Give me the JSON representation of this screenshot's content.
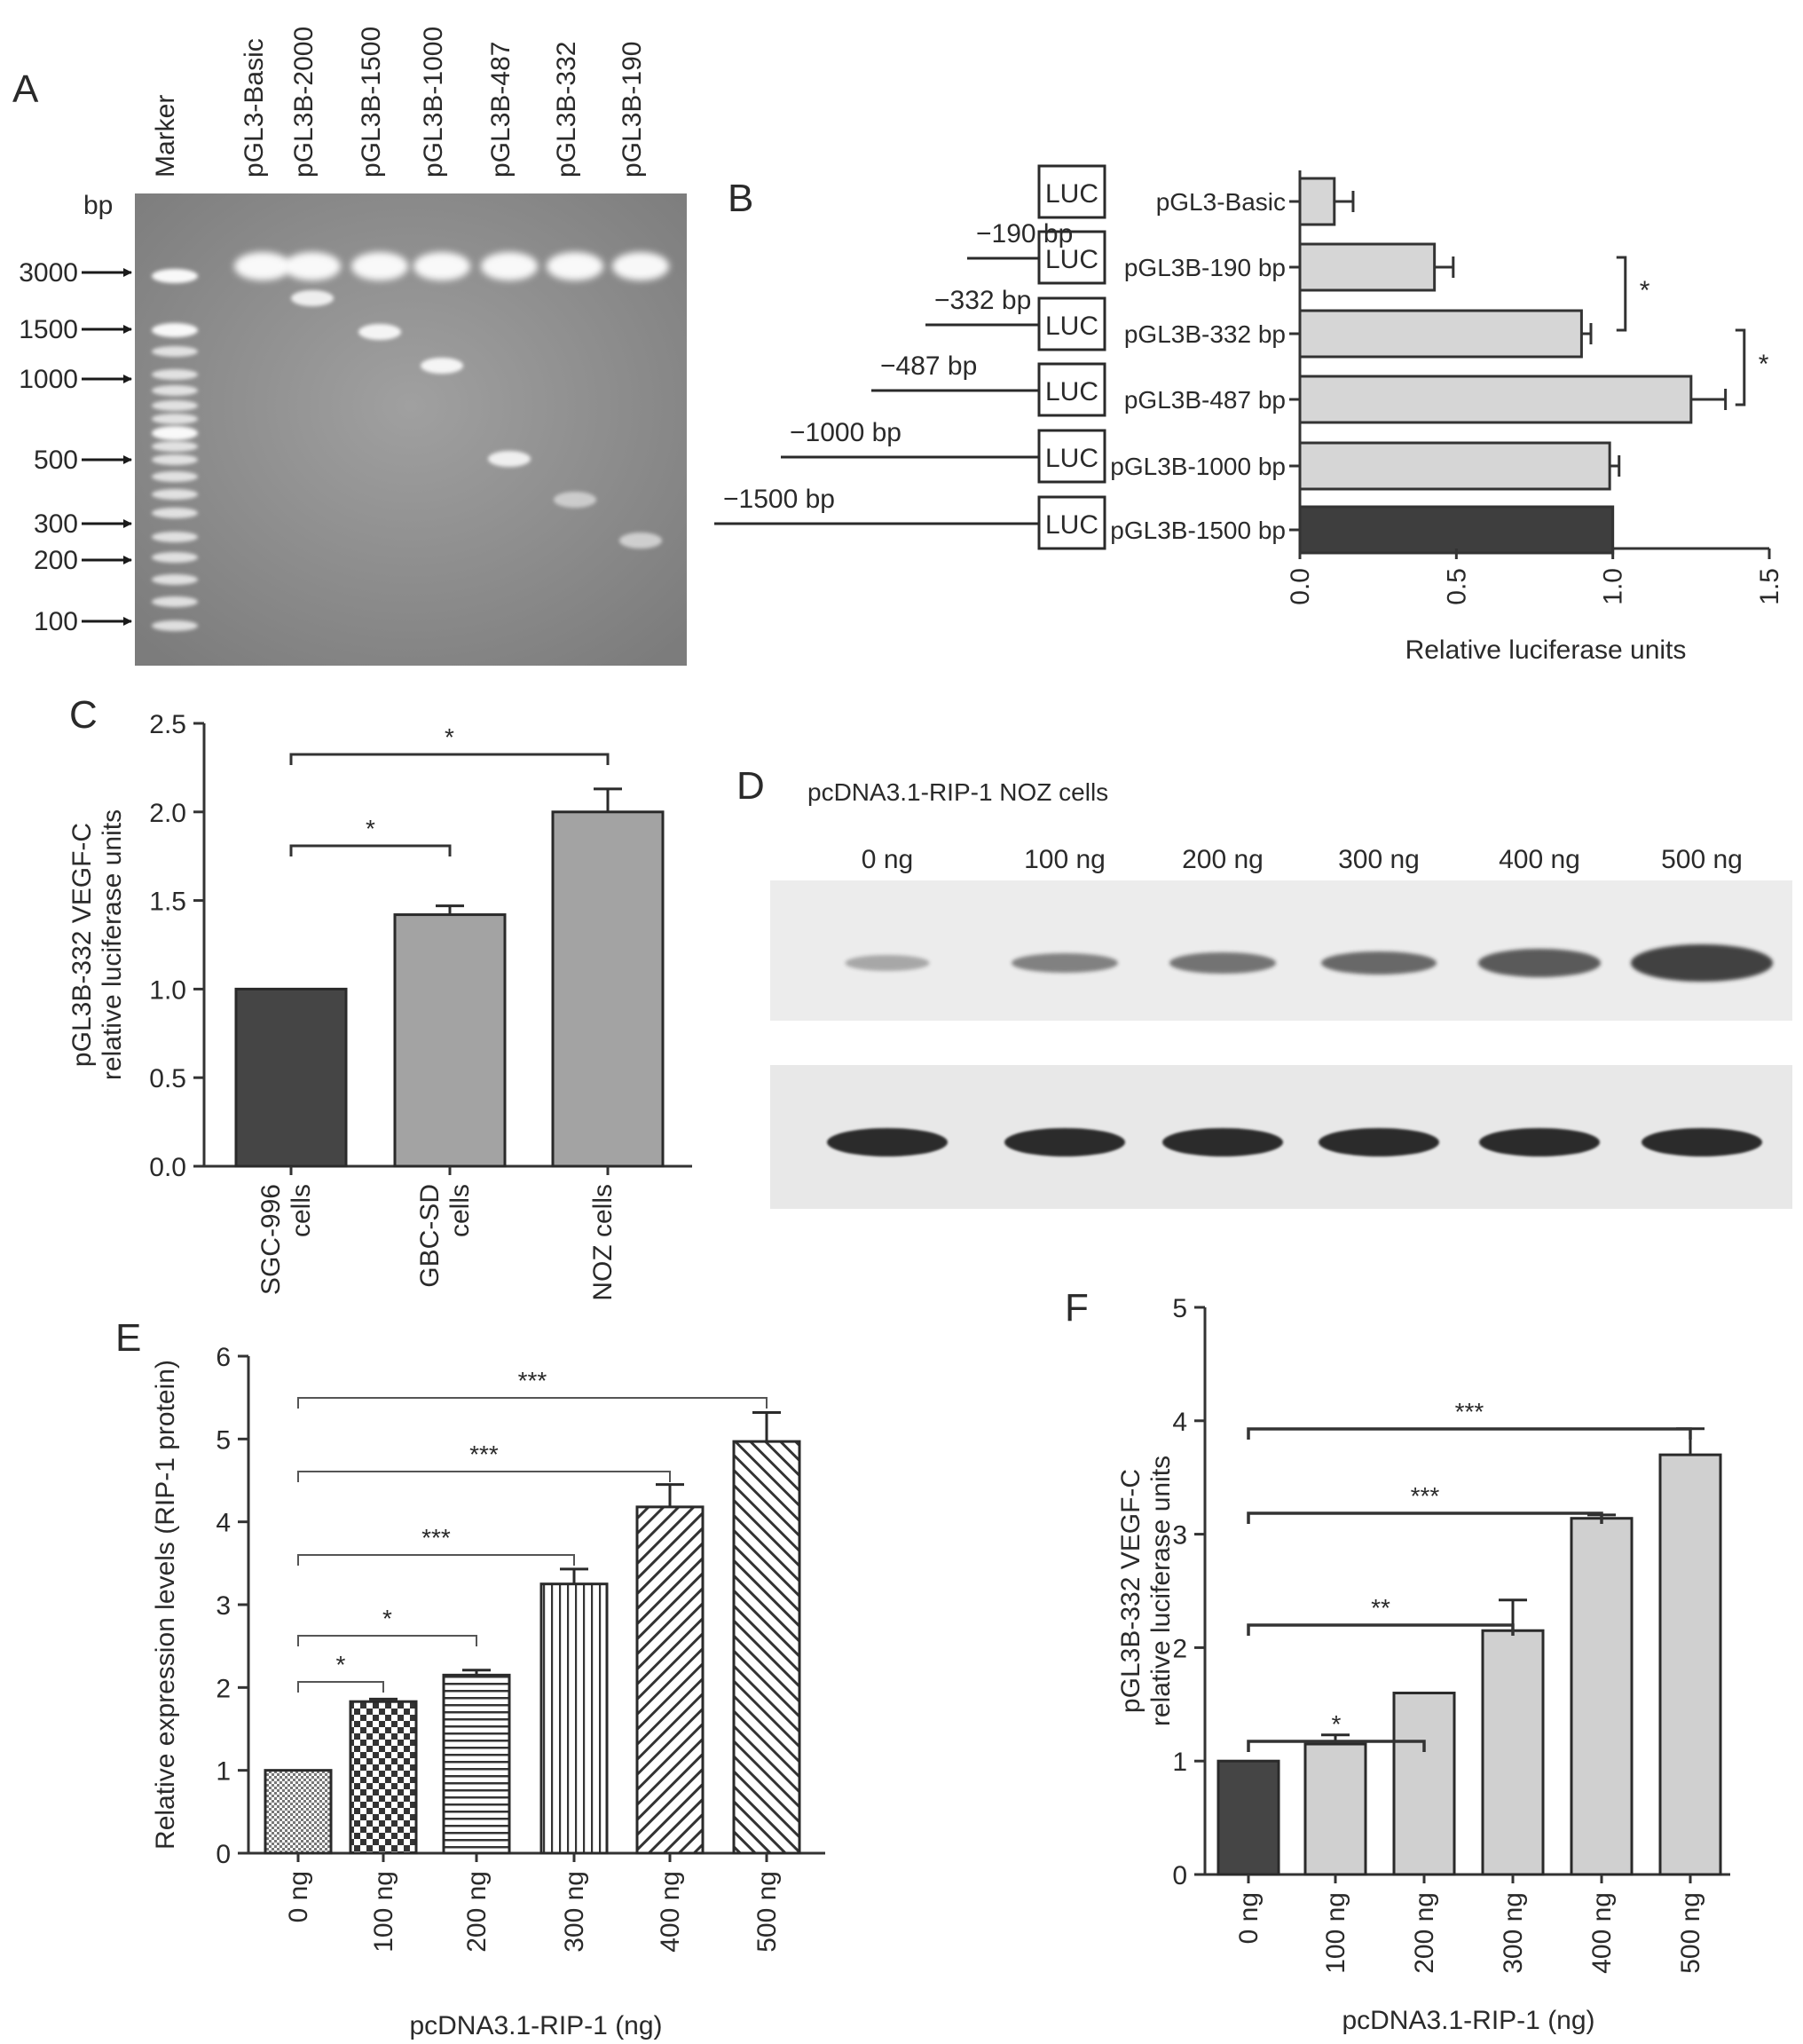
{
  "panel_labels": {
    "a": "A",
    "b": "B",
    "c": "C",
    "d": "D",
    "e": "E",
    "f": "F"
  },
  "gel": {
    "bp_label": "bp",
    "lane_labels": [
      "Marker",
      "pGL3-Basic",
      "pGL3B-2000",
      "pGL3B-1500",
      "pGL3B-1000",
      "pGL3B-487",
      "pGL3B-332",
      "pGL3B-190"
    ],
    "marker_sizes": [
      "3000",
      "1500",
      "1000",
      "500",
      "300",
      "200",
      "100"
    ]
  },
  "construct_diagram": {
    "box_label": "LUC",
    "promoter_labels": [
      "−190 bp",
      "−332 bp",
      "−487 bp",
      "−1000 bp",
      "−1500 bp"
    ]
  },
  "western_blot": {
    "title": "pcDNA3.1-RIP-1 NOZ cells",
    "lane_labels": [
      "0 ng",
      "100 ng",
      "200 ng",
      "300 ng",
      "400 ng",
      "500 ng"
    ]
  },
  "chart_data": [
    {
      "panel": "B",
      "type": "bar",
      "orientation": "horizontal",
      "categories": [
        "pGL3-Basic",
        "pGL3B-190 bp",
        "pGL3B-332 bp",
        "pGL3B-487 bp",
        "pGL3B-1000 bp",
        "pGL3B-1500 bp"
      ],
      "values": [
        0.11,
        0.43,
        0.9,
        1.25,
        0.99,
        1.0
      ],
      "errors": [
        0.06,
        0.06,
        0.03,
        0.11,
        0.03,
        0
      ],
      "colors": [
        "#d6d6d6",
        "#d6d6d6",
        "#d6d6d6",
        "#d6d6d6",
        "#d6d6d6",
        "#3e3e3e"
      ],
      "xlabel": "Relative luciferase units",
      "xlim": [
        0,
        1.5
      ],
      "xticks": [
        "0.0",
        "0.5",
        "1.0",
        "1.5"
      ],
      "significance": [
        "*",
        "*"
      ]
    },
    {
      "panel": "C",
      "type": "bar",
      "categories": [
        "SGC-996 cells",
        "GBC-SD cells",
        "NOZ cells"
      ],
      "values": [
        1.0,
        1.42,
        2.0
      ],
      "errors": [
        0,
        0.05,
        0.13
      ],
      "colors": [
        "#454545",
        "#a3a3a3",
        "#a3a3a3"
      ],
      "ylabel": "pGL3B-332 VEGF-C relative luciferase units",
      "ylim": [
        0,
        2.5
      ],
      "yticks": [
        "0.0",
        "0.5",
        "1.0",
        "1.5",
        "2.0",
        "2.5"
      ],
      "significance": [
        "*",
        "*"
      ]
    },
    {
      "panel": "E",
      "type": "bar",
      "categories": [
        "0 ng",
        "100 ng",
        "200 ng",
        "300 ng",
        "400 ng",
        "500 ng"
      ],
      "values": [
        1.0,
        1.83,
        2.15,
        3.25,
        4.18,
        4.97
      ],
      "errors": [
        0,
        0.03,
        0.06,
        0.18,
        0.27,
        0.35
      ],
      "xlabel": "pcDNA3.1-RIP-1 (ng)",
      "ylabel": "Relative expression levels (RIP-1 protein)",
      "ylim": [
        0,
        6
      ],
      "yticks": [
        "0",
        "1",
        "2",
        "3",
        "4",
        "5",
        "6"
      ],
      "significance": [
        "*",
        "*",
        "***",
        "***",
        "***"
      ]
    },
    {
      "panel": "F",
      "type": "bar",
      "categories": [
        "0 ng",
        "100 ng",
        "200 ng",
        "300 ng",
        "400 ng",
        "500 ng"
      ],
      "values": [
        1.0,
        1.15,
        1.6,
        2.15,
        3.14,
        3.7
      ],
      "errors": [
        0,
        0.08,
        0,
        0.27,
        0.03,
        0.23
      ],
      "colors": [
        "#454545",
        "#d0d0d0",
        "#d0d0d0",
        "#d0d0d0",
        "#d0d0d0",
        "#d0d0d0"
      ],
      "xlabel": "pcDNA3.1-RIP-1 (ng)",
      "ylabel": "pGL3B-332 VEGF-C relative luciferase units",
      "ylim": [
        0,
        5
      ],
      "yticks": [
        "0",
        "1",
        "2",
        "3",
        "4",
        "5"
      ],
      "significance": [
        "*",
        "**",
        "***",
        "***"
      ]
    }
  ]
}
